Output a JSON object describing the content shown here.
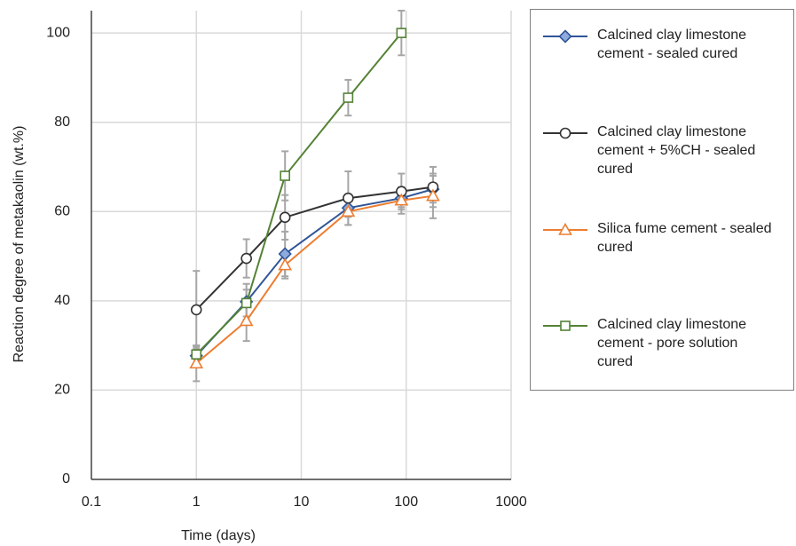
{
  "chart_data": {
    "type": "line",
    "x_label": "Time (days)",
    "y_label": "Reaction degree of metakaolin (wt.%)",
    "xlim": [
      0.1,
      1000
    ],
    "xticks": [
      0.1,
      1,
      10,
      100,
      1000
    ],
    "xscale": "log",
    "ylim": [
      0,
      105
    ],
    "yticks": [
      0,
      20,
      40,
      60,
      80,
      100
    ],
    "grid": true,
    "legend": "right",
    "error_color": "#a6a6a6",
    "series": [
      {
        "name": "Calcined clay limestone cement - sealed cured",
        "color": "#2f5597",
        "marker": "diamond",
        "marker_fill": "#8faadc",
        "x": [
          1,
          3,
          7,
          28,
          90,
          180
        ],
        "values": [
          27.7,
          39.8,
          50.5,
          60.8,
          63,
          65
        ],
        "errors": [
          2,
          4,
          5,
          2,
          2,
          3
        ]
      },
      {
        "name": "Calcined clay limestone cement + 5%CH - sealed cured",
        "color": "#333333",
        "marker": "circle",
        "marker_fill": "#ffffff",
        "x": [
          1,
          3,
          7,
          28,
          90,
          180
        ],
        "values": [
          38,
          49.5,
          58.7,
          63,
          64.5,
          65.5
        ],
        "errors": [
          8.7,
          4.3,
          5,
          6,
          4,
          4.5
        ]
      },
      {
        "name": "Silica fume cement - sealed cured",
        "color": "#ed7d31",
        "marker": "triangle",
        "marker_fill": "#ffffff",
        "x": [
          1,
          3,
          7,
          28,
          90,
          180
        ],
        "values": [
          26,
          35.5,
          48,
          60,
          62.5,
          63.5
        ],
        "errors": [
          4,
          4.5,
          3,
          3,
          3,
          5
        ]
      },
      {
        "name": "Calcined clay limestone cement - pore solution cured",
        "color": "#548235",
        "marker": "square",
        "marker_fill": "#ffffff",
        "x": [
          1,
          3,
          7,
          28,
          90
        ],
        "values": [
          28,
          39.5,
          68,
          85.5,
          100
        ],
        "errors": [
          2,
          3,
          5.5,
          4,
          5
        ]
      }
    ]
  }
}
